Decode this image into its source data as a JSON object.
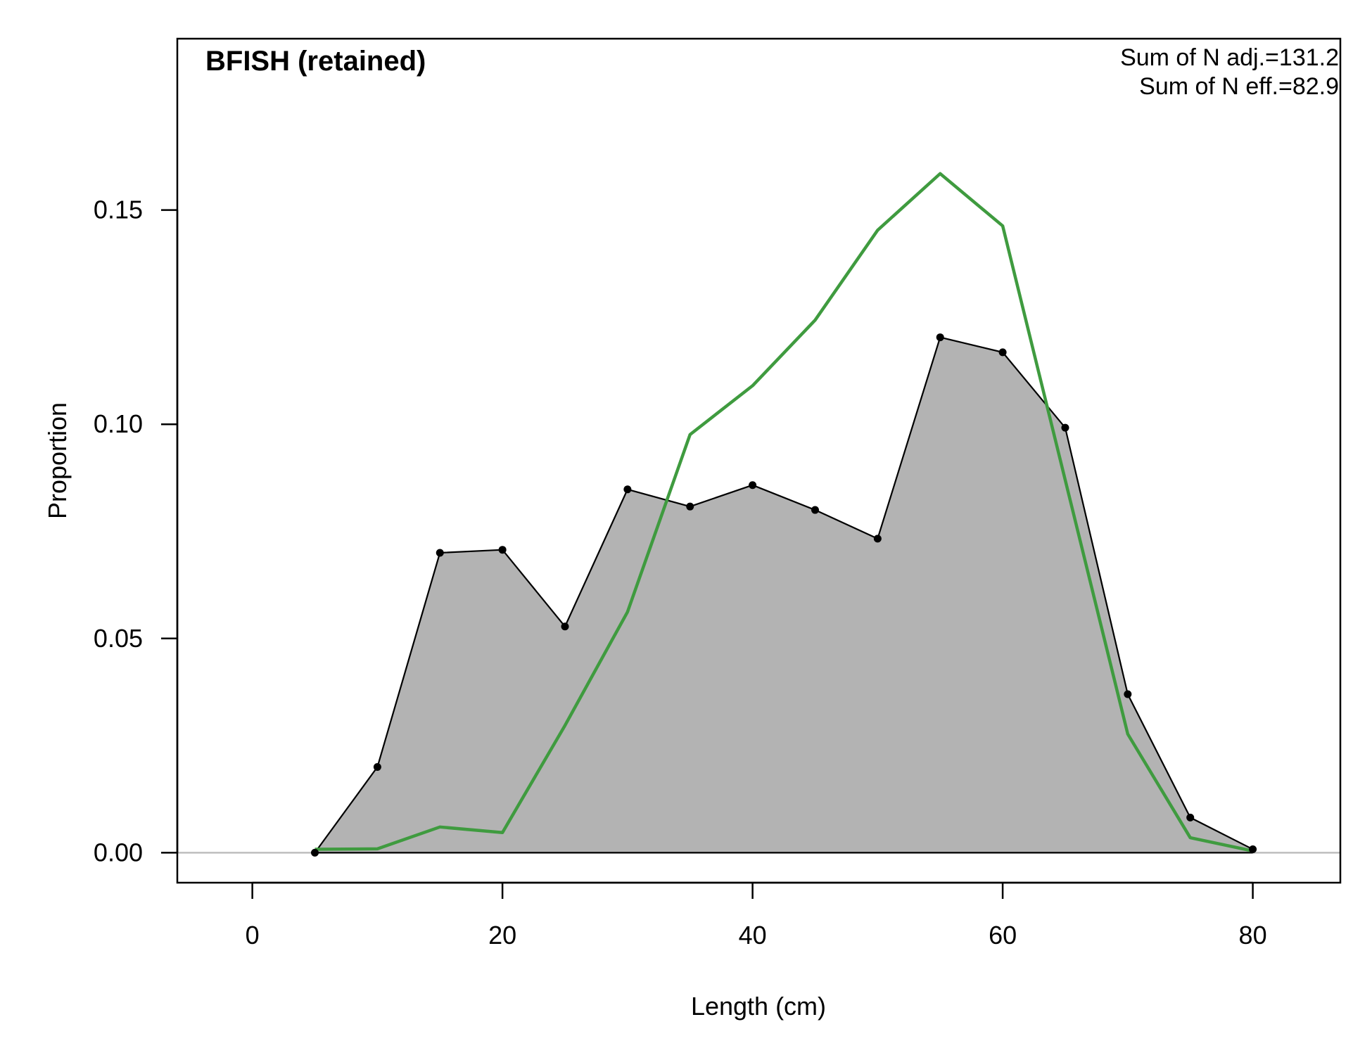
{
  "chart_data": {
    "type": "area",
    "title": "BFISH (retained)",
    "xlabel": "Length (cm)",
    "ylabel": "Proportion",
    "xlim": [
      -6,
      87
    ],
    "ylim": [
      -0.007,
      0.19
    ],
    "x_ticks": [
      0,
      20,
      40,
      60,
      80
    ],
    "x_tick_labels": [
      "0",
      "20",
      "40",
      "60",
      "80"
    ],
    "y_ticks": [
      0.0,
      0.05,
      0.1,
      0.15
    ],
    "y_tick_labels": [
      "0.00",
      "0.05",
      "0.10",
      "0.15"
    ],
    "annotations": [
      "Sum of N adj.=131.2",
      "Sum of N eff.=82.9"
    ],
    "grid": false,
    "x": [
      5,
      10,
      15,
      20,
      25,
      30,
      35,
      40,
      45,
      50,
      55,
      60,
      65,
      70,
      75,
      80
    ],
    "series": [
      {
        "role": "observed",
        "style": "filled area with points",
        "values": [
          0.0,
          0.02,
          0.07,
          0.0707,
          0.0528,
          0.0848,
          0.0808,
          0.0858,
          0.08,
          0.0733,
          0.1203,
          0.1168,
          0.0992,
          0.037,
          0.0082,
          0.0008
        ]
      },
      {
        "role": "expected",
        "style": "line",
        "values": [
          0.0008,
          0.0009,
          0.006,
          0.0047,
          0.0297,
          0.0562,
          0.0976,
          0.109,
          0.1243,
          0.1453,
          0.1585,
          0.1463,
          0.087,
          0.0277,
          0.0035,
          0.0004
        ]
      }
    ],
    "colors": {
      "fill": "#b3b3b3",
      "observed_line": "#000000",
      "expected_line": "#3f9b3f",
      "zero_line": "#bebebe",
      "frame": "#000000"
    }
  }
}
